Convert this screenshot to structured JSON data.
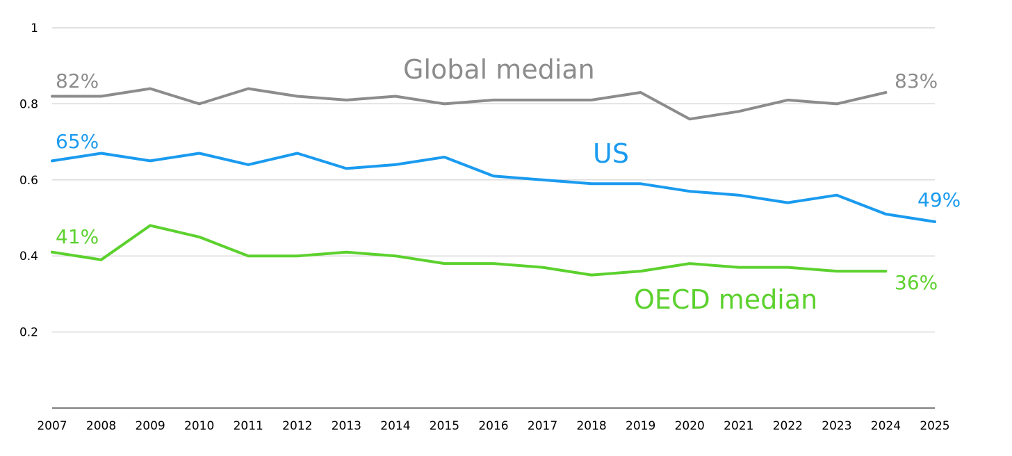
{
  "chart_data": {
    "type": "line",
    "title": "",
    "xlabel": "",
    "ylabel": "",
    "x": [
      "2007",
      "2008",
      "2009",
      "2010",
      "2011",
      "2012",
      "2013",
      "2014",
      "2015",
      "2016",
      "2017",
      "2018",
      "2019",
      "2020",
      "2021",
      "2022",
      "2023",
      "2024",
      "2025"
    ],
    "ylim": [
      0,
      1
    ],
    "yticks": [
      "1",
      "0.8",
      "0.6",
      "0.4",
      "0.2"
    ],
    "ytick_values": [
      1,
      0.8,
      0.6,
      0.4,
      0.2
    ],
    "grid": "horizontal",
    "series": [
      {
        "name": "Global median",
        "color": "#8c8c8c",
        "values": [
          0.82,
          0.82,
          0.84,
          0.8,
          0.84,
          0.82,
          0.81,
          0.82,
          0.8,
          0.81,
          0.81,
          0.81,
          0.83,
          0.76,
          0.78,
          0.81,
          0.8,
          0.83,
          null
        ],
        "start_label": "82%",
        "end_label": "83%"
      },
      {
        "name": "US",
        "color": "#1a9bef",
        "values": [
          0.65,
          0.67,
          0.65,
          0.67,
          0.64,
          0.67,
          0.63,
          0.64,
          0.66,
          0.61,
          0.6,
          0.59,
          0.59,
          0.57,
          0.56,
          0.54,
          0.56,
          0.51,
          0.49
        ],
        "start_label": "65%",
        "end_label": "49%"
      },
      {
        "name": "OECD median",
        "color": "#5cd12e",
        "values": [
          0.41,
          0.39,
          0.48,
          0.45,
          0.4,
          0.4,
          0.41,
          0.4,
          0.38,
          0.38,
          0.37,
          0.35,
          0.36,
          0.38,
          0.37,
          0.37,
          0.36,
          0.36,
          null
        ],
        "start_label": "41%",
        "end_label": "36%"
      }
    ]
  }
}
